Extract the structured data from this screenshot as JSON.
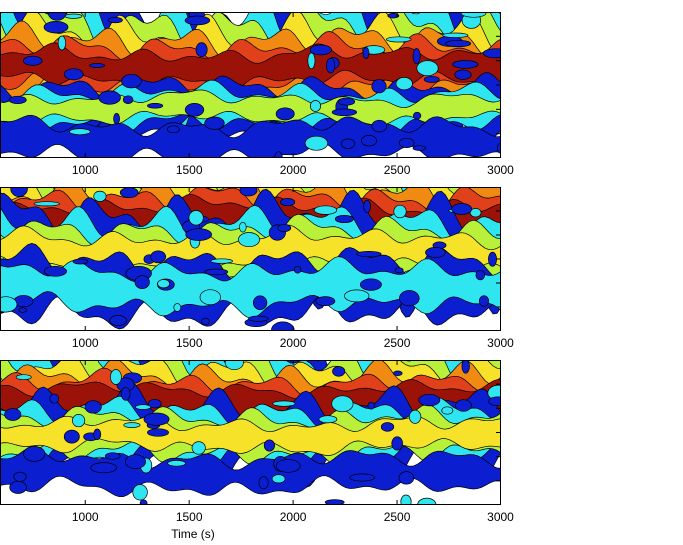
{
  "chart_data": [
    {
      "type": "heatmap",
      "subtype": "filled-contour",
      "x_ticks": [
        1000,
        1500,
        2000,
        2500,
        3000
      ],
      "xlim": [
        590,
        3000
      ],
      "xlabel": "",
      "grid": false,
      "colormap": [
        "#ffffff",
        "#0b1fd1",
        "#2fe6f0",
        "#b8f03a",
        "#f7e22a",
        "#f08a12",
        "#e0401a",
        "#9a1208"
      ],
      "ridges": [
        {
          "y_frac": 0.62,
          "level": 7,
          "thickness": 0.09
        },
        {
          "y_frac": 0.34,
          "level": 3,
          "thickness": 0.07
        },
        {
          "y_frac": 0.12,
          "level": 1,
          "thickness": 0.1
        }
      ]
    },
    {
      "type": "heatmap",
      "subtype": "filled-contour",
      "x_ticks": [
        1000,
        1500,
        2000,
        2500,
        3000
      ],
      "xlim": [
        590,
        3000
      ],
      "xlabel": "",
      "grid": false,
      "colormap": [
        "#ffffff",
        "#0b1fd1",
        "#2fe6f0",
        "#b8f03a",
        "#f7e22a",
        "#f08a12",
        "#e0401a",
        "#9a1208"
      ],
      "ridges": [
        {
          "y_frac": 0.77,
          "level": 7,
          "thickness": 0.1
        },
        {
          "y_frac": 0.55,
          "level": 4,
          "thickness": 0.1
        },
        {
          "y_frac": 0.3,
          "level": 2,
          "thickness": 0.12
        }
      ]
    },
    {
      "type": "heatmap",
      "subtype": "filled-contour",
      "x_ticks": [
        1000,
        1500,
        2000,
        2500,
        3000
      ],
      "xlim": [
        590,
        3000
      ],
      "xlabel": "Time (s)",
      "grid": false,
      "colormap": [
        "#ffffff",
        "#0b1fd1",
        "#2fe6f0",
        "#b8f03a",
        "#f7e22a",
        "#f08a12",
        "#e0401a",
        "#9a1208"
      ],
      "ridges": [
        {
          "y_frac": 0.72,
          "level": 7,
          "thickness": 0.08
        },
        {
          "y_frac": 0.48,
          "level": 4,
          "thickness": 0.08
        },
        {
          "y_frac": 0.22,
          "level": 1,
          "thickness": 0.1
        }
      ]
    }
  ]
}
